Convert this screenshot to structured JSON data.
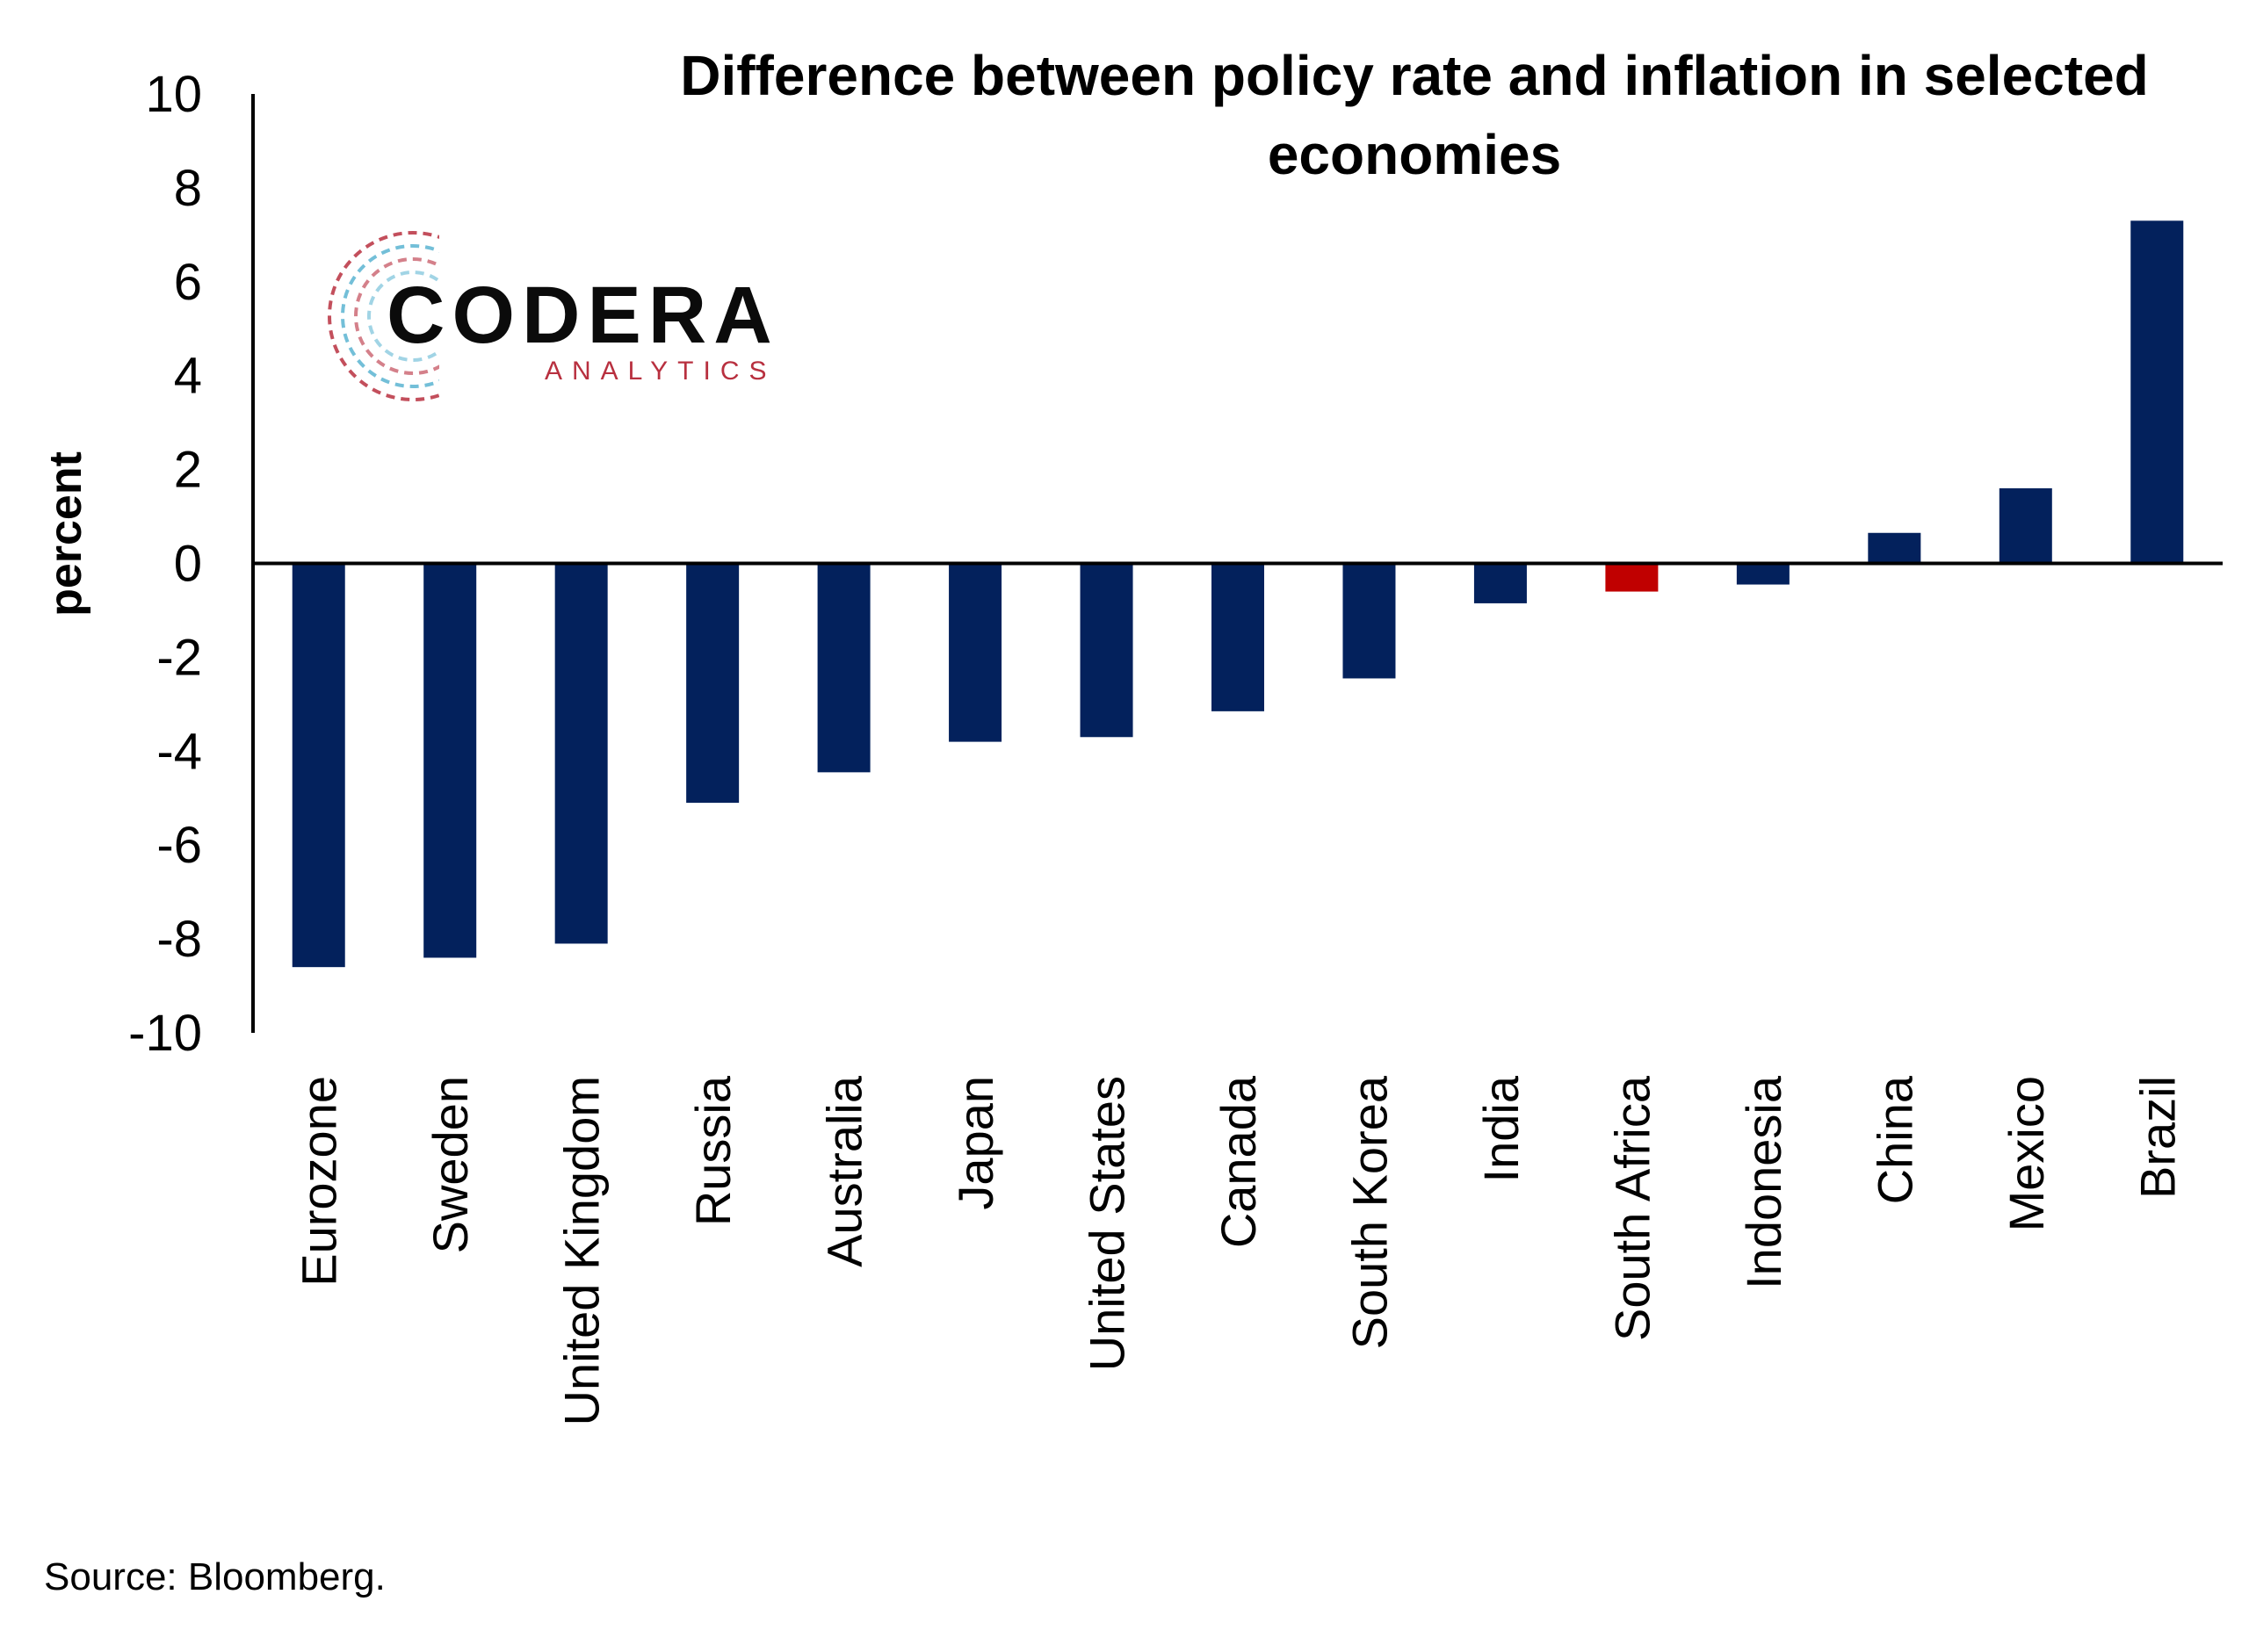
{
  "chart_data": {
    "type": "bar",
    "title_lines": [
      "Difference between policy rate and inflation in selected",
      "economies"
    ],
    "ylabel": "percent",
    "xlabel": "",
    "ylim": [
      -10,
      10
    ],
    "yticks": [
      10,
      8,
      6,
      4,
      2,
      0,
      -2,
      -4,
      -6,
      -8,
      -10
    ],
    "categories": [
      "Eurozone",
      "Sweden",
      "United Kingdom",
      "Russia",
      "Australia",
      "Japan",
      "United States",
      "Canada",
      "South Korea",
      "India",
      "South Africa",
      "Indonesia",
      "China",
      "Mexico",
      "Brazil"
    ],
    "values": [
      -8.6,
      -8.4,
      -8.1,
      -5.1,
      -4.45,
      -3.8,
      -3.7,
      -3.15,
      -2.45,
      -0.85,
      -0.6,
      -0.45,
      0.65,
      1.6,
      7.3
    ],
    "grid": false,
    "legend": "none",
    "colors": {
      "bar": "#03215c",
      "highlight": "#c00000",
      "axis": "#000000"
    },
    "highlight_category": "South Africa"
  },
  "logo": {
    "name": "CODERA",
    "sub": "ANALYTICS",
    "colors": {
      "text": "#0b0b0b",
      "accent_red": "#b8303f",
      "accent_teal": "#3fa7c9"
    }
  },
  "source": "Source: Bloomberg."
}
